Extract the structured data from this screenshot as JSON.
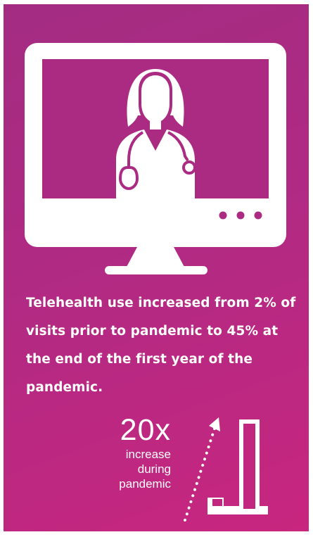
{
  "headline": "Telehealth use increased from 2% of visits prior to pandemic to 45% at the end of the first year of the pandemic.",
  "stat": {
    "value": "20x",
    "caption_line1": "increase",
    "caption_line2": "during",
    "caption_line3": "pandemic"
  },
  "icons": {
    "monitor": "computer-monitor-icon",
    "doctor": "doctor-icon",
    "stethoscope": "stethoscope-icon",
    "growth": "bar-growth-icon"
  },
  "colors": {
    "background_start": "#a32c82",
    "background_end": "#c8267f",
    "foreground": "#ffffff"
  }
}
